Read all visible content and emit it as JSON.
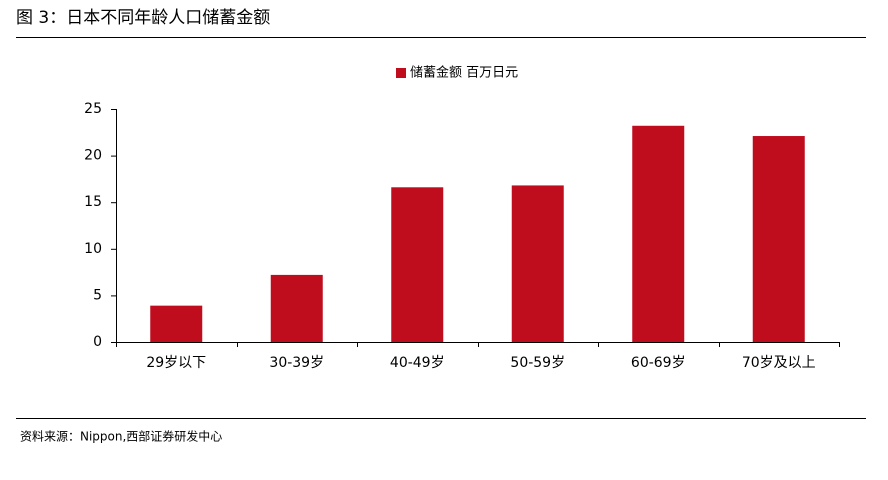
{
  "chart_data": {
    "type": "bar",
    "title": "图 3：日本不同年龄人口储蓄金额",
    "source": "资料来源：Nippon,西部证券研发中心",
    "categories": [
      "29岁以下",
      "30-39岁",
      "40-49岁",
      "50-59岁",
      "60-69岁",
      "70岁及以上"
    ],
    "series": [
      {
        "name": "储蓄金额 百万日元",
        "color": "#c00d1e",
        "values": [
          3.9,
          7.2,
          16.6,
          16.8,
          23.2,
          22.1
        ]
      }
    ],
    "ylim": [
      0,
      25
    ],
    "yticks": [
      0,
      5,
      10,
      15,
      20,
      25
    ],
    "grid": false,
    "legend": "top"
  }
}
